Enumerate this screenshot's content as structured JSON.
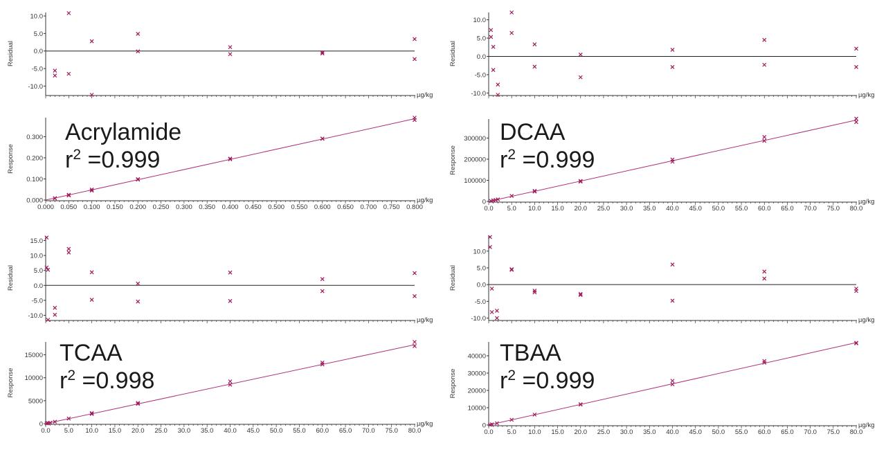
{
  "colors": {
    "marker": "#a0185a",
    "fit_line": "#b0307a",
    "axis": "#333333",
    "zero_line": "#222222",
    "background": "#ffffff"
  },
  "chart_data": [
    {
      "panel_id": "acrylamide-residual",
      "type": "scatter",
      "xlabel": "µg/kg",
      "ylabel": "Residual",
      "xlim": [
        0,
        0.8
      ],
      "ylim": [
        -12.5,
        11
      ],
      "yticks": [
        "10.0",
        "5.0",
        "0.0",
        "-5.0",
        "-10.0"
      ],
      "ytick_values": [
        10,
        5,
        0,
        -5,
        -10
      ],
      "zero_line": true,
      "points": [
        {
          "x": 0.02,
          "y": -5.6
        },
        {
          "x": 0.02,
          "y": -7.0
        },
        {
          "x": 0.05,
          "y": 10.8
        },
        {
          "x": 0.05,
          "y": -6.5
        },
        {
          "x": 0.1,
          "y": 2.8
        },
        {
          "x": 0.1,
          "y": -12.5
        },
        {
          "x": 0.2,
          "y": 4.9
        },
        {
          "x": 0.2,
          "y": -0.1
        },
        {
          "x": 0.4,
          "y": 1.1
        },
        {
          "x": 0.4,
          "y": -0.9
        },
        {
          "x": 0.6,
          "y": -0.4
        },
        {
          "x": 0.6,
          "y": -0.7
        },
        {
          "x": 0.8,
          "y": 3.4
        },
        {
          "x": 0.8,
          "y": -2.3
        }
      ]
    },
    {
      "panel_id": "acrylamide-response",
      "type": "scatter",
      "analyte": "Acrylamide",
      "r2_label": "r",
      "r2_sup": "2",
      "r2_value": " =0.999",
      "xlabel": "µg/kg",
      "ylabel": "Response",
      "xlim": [
        0,
        0.8
      ],
      "ylim": [
        0,
        0.39
      ],
      "xticks": [
        "0.000",
        "0.050",
        "0.100",
        "0.150",
        "0.200",
        "0.250",
        "0.300",
        "0.350",
        "0.400",
        "0.450",
        "0.500",
        "0.550",
        "0.600",
        "0.650",
        "0.700",
        "0.750",
        "0.800"
      ],
      "xtick_values": [
        0,
        0.05,
        0.1,
        0.15,
        0.2,
        0.25,
        0.3,
        0.35,
        0.4,
        0.45,
        0.5,
        0.55,
        0.6,
        0.65,
        0.7,
        0.75,
        0.8
      ],
      "yticks": [
        "0.300",
        "0.200",
        "0.100",
        "0.000"
      ],
      "ytick_values": [
        0.3,
        0.2,
        0.1,
        0
      ],
      "fit": {
        "x0": 0,
        "y0": 0.0,
        "x1": 0.8,
        "y1": 0.385
      },
      "points": [
        {
          "x": 0.02,
          "y": 0.008
        },
        {
          "x": 0.02,
          "y": 0.009
        },
        {
          "x": 0.05,
          "y": 0.022
        },
        {
          "x": 0.05,
          "y": 0.025
        },
        {
          "x": 0.1,
          "y": 0.045
        },
        {
          "x": 0.1,
          "y": 0.05
        },
        {
          "x": 0.2,
          "y": 0.097
        },
        {
          "x": 0.2,
          "y": 0.099
        },
        {
          "x": 0.4,
          "y": 0.193
        },
        {
          "x": 0.4,
          "y": 0.196
        },
        {
          "x": 0.6,
          "y": 0.29
        },
        {
          "x": 0.6,
          "y": 0.291
        },
        {
          "x": 0.8,
          "y": 0.39
        },
        {
          "x": 0.8,
          "y": 0.379
        }
      ]
    },
    {
      "panel_id": "dcaa-residual",
      "type": "scatter",
      "xlabel": "µg/kg",
      "ylabel": "Residual",
      "xlim": [
        0,
        80
      ],
      "ylim": [
        -10.5,
        12
      ],
      "yticks": [
        "10.0",
        "5.0",
        "0.0",
        "-5.0",
        "-10.0"
      ],
      "ytick_values": [
        10,
        5,
        0,
        -5,
        -10
      ],
      "zero_line": true,
      "points": [
        {
          "x": 0.5,
          "y": 7.2
        },
        {
          "x": 0.5,
          "y": 5.3
        },
        {
          "x": 1,
          "y": 2.6
        },
        {
          "x": 1,
          "y": -3.7
        },
        {
          "x": 2,
          "y": -7.7
        },
        {
          "x": 2,
          "y": -10.5
        },
        {
          "x": 5,
          "y": 12.0
        },
        {
          "x": 5,
          "y": 6.4
        },
        {
          "x": 10,
          "y": 3.3
        },
        {
          "x": 10,
          "y": -2.8
        },
        {
          "x": 20,
          "y": 0.5
        },
        {
          "x": 20,
          "y": -5.7
        },
        {
          "x": 40,
          "y": 1.8
        },
        {
          "x": 40,
          "y": -2.9
        },
        {
          "x": 60,
          "y": 4.5
        },
        {
          "x": 60,
          "y": -2.3
        },
        {
          "x": 80,
          "y": 2.1
        },
        {
          "x": 80,
          "y": -2.9
        }
      ]
    },
    {
      "panel_id": "dcaa-response",
      "type": "scatter",
      "analyte": "DCAA",
      "r2_label": "r",
      "r2_sup": "2",
      "r2_value": " =0.999",
      "xlabel": "µg/kg",
      "ylabel": "Response",
      "xlim": [
        0,
        80
      ],
      "ylim": [
        0,
        390000
      ],
      "xticks": [
        "0.0",
        "5.0",
        "10.0",
        "15.0",
        "20.0",
        "25.0",
        "30.0",
        "35.0",
        "40.0",
        "45.0",
        "50.0",
        "55.0",
        "60.0",
        "65.0",
        "70.0",
        "75.0",
        "80.0"
      ],
      "xtick_values": [
        0,
        5,
        10,
        15,
        20,
        25,
        30,
        35,
        40,
        45,
        50,
        55,
        60,
        65,
        70,
        75,
        80
      ],
      "yticks": [
        "300000",
        "200000",
        "100000",
        "0"
      ],
      "ytick_values": [
        300000,
        200000,
        100000,
        0
      ],
      "fit": {
        "x0": 0,
        "y0": 0,
        "x1": 80,
        "y1": 385000
      },
      "points": [
        {
          "x": 0.5,
          "y": 2500
        },
        {
          "x": 1,
          "y": 5000
        },
        {
          "x": 1.5,
          "y": 7000
        },
        {
          "x": 2,
          "y": 9500
        },
        {
          "x": 5,
          "y": 26000
        },
        {
          "x": 10,
          "y": 47000
        },
        {
          "x": 10,
          "y": 50000
        },
        {
          "x": 20,
          "y": 94000
        },
        {
          "x": 20,
          "y": 97000
        },
        {
          "x": 40,
          "y": 188000
        },
        {
          "x": 40,
          "y": 198000
        },
        {
          "x": 60,
          "y": 287000
        },
        {
          "x": 60,
          "y": 305000
        },
        {
          "x": 80,
          "y": 392000
        },
        {
          "x": 80,
          "y": 376000
        }
      ]
    },
    {
      "panel_id": "tcaa-residual",
      "type": "scatter",
      "xlabel": "µg/kg",
      "ylabel": "Residual",
      "xlim": [
        0,
        80
      ],
      "ylim": [
        -11.5,
        16.5
      ],
      "yticks": [
        "15.0",
        "10.0",
        "5.0",
        "0.0",
        "-5.0",
        "-10.0"
      ],
      "ytick_values": [
        15,
        10,
        5,
        0,
        -5,
        -10
      ],
      "zero_line": true,
      "points": [
        {
          "x": 0.2,
          "y": 16.0
        },
        {
          "x": 0.2,
          "y": 6.0
        },
        {
          "x": 0.5,
          "y": 5.2
        },
        {
          "x": 0.5,
          "y": -11.5
        },
        {
          "x": 2,
          "y": -7.5
        },
        {
          "x": 2,
          "y": -9.8
        },
        {
          "x": 5,
          "y": 12.2
        },
        {
          "x": 5,
          "y": 11.0
        },
        {
          "x": 10,
          "y": 4.4
        },
        {
          "x": 10,
          "y": -4.8
        },
        {
          "x": 20,
          "y": 0.6
        },
        {
          "x": 20,
          "y": -5.4
        },
        {
          "x": 40,
          "y": 4.3
        },
        {
          "x": 40,
          "y": -5.2
        },
        {
          "x": 60,
          "y": 2.1
        },
        {
          "x": 60,
          "y": -1.9
        },
        {
          "x": 80,
          "y": 4.1
        },
        {
          "x": 80,
          "y": -3.6
        }
      ]
    },
    {
      "panel_id": "tbaa-residual",
      "type": "scatter",
      "xlabel": "µg/kg",
      "ylabel": "Residual",
      "xlim": [
        0,
        80
      ],
      "ylim": [
        -10.5,
        14.5
      ],
      "yticks": [
        "10.0",
        "5.0",
        "0.0",
        "-5.0",
        "-10.0"
      ],
      "ytick_values": [
        10,
        5,
        0,
        -5,
        -10
      ],
      "zero_line": true,
      "points": [
        {
          "x": 0.3,
          "y": 14.2
        },
        {
          "x": 0.3,
          "y": 11.2
        },
        {
          "x": 0.7,
          "y": -1.2
        },
        {
          "x": 0.7,
          "y": -8.2
        },
        {
          "x": 1.8,
          "y": -7.8
        },
        {
          "x": 1.8,
          "y": -10.0
        },
        {
          "x": 5,
          "y": 4.6
        },
        {
          "x": 5,
          "y": 4.4
        },
        {
          "x": 10,
          "y": -1.8
        },
        {
          "x": 10,
          "y": -2.3
        },
        {
          "x": 20,
          "y": -2.8
        },
        {
          "x": 20,
          "y": -3.1
        },
        {
          "x": 40,
          "y": 6.0
        },
        {
          "x": 40,
          "y": -4.8
        },
        {
          "x": 60,
          "y": 3.9
        },
        {
          "x": 60,
          "y": 1.8
        },
        {
          "x": 80,
          "y": -1.2
        },
        {
          "x": 80,
          "y": -1.9
        }
      ]
    },
    {
      "panel_id": "tcaa-response",
      "type": "scatter",
      "analyte": "TCAA",
      "r2_label": "r",
      "r2_sup": "2",
      "r2_value": " =0.998",
      "xlabel": "µg/kg",
      "ylabel": "Response",
      "xlim": [
        0,
        80
      ],
      "ylim": [
        0,
        17800
      ],
      "xticks": [
        "0.0",
        "5.0",
        "10.0",
        "15.0",
        "20.0",
        "25.0",
        "30.0",
        "35.0",
        "40.0",
        "45.0",
        "50.0",
        "55.0",
        "60.0",
        "65.0",
        "70.0",
        "75.0",
        "80.0"
      ],
      "xtick_values": [
        0,
        5,
        10,
        15,
        20,
        25,
        30,
        35,
        40,
        45,
        50,
        55,
        60,
        65,
        70,
        75,
        80
      ],
      "yticks": [
        "15000",
        "10000",
        "5000",
        "0"
      ],
      "ytick_values": [
        15000,
        10000,
        5000,
        0
      ],
      "fit": {
        "x0": 0,
        "y0": 0,
        "x1": 80,
        "y1": 17200
      },
      "points": [
        {
          "x": 0.2,
          "y": 50
        },
        {
          "x": 0.5,
          "y": 100
        },
        {
          "x": 1,
          "y": 200
        },
        {
          "x": 2,
          "y": 400
        },
        {
          "x": 5,
          "y": 1100
        },
        {
          "x": 10,
          "y": 2100
        },
        {
          "x": 10,
          "y": 2300
        },
        {
          "x": 20,
          "y": 4300
        },
        {
          "x": 20,
          "y": 4500
        },
        {
          "x": 40,
          "y": 8500
        },
        {
          "x": 40,
          "y": 9200
        },
        {
          "x": 60,
          "y": 12900
        },
        {
          "x": 60,
          "y": 13300
        },
        {
          "x": 80,
          "y": 17800
        },
        {
          "x": 80,
          "y": 16900
        }
      ]
    },
    {
      "panel_id": "tbaa-response",
      "type": "scatter",
      "analyte": "TBAA",
      "r2_label": "r",
      "r2_sup": "2",
      "r2_value": " =0.999",
      "xlabel": "µg/kg",
      "ylabel": "Response",
      "xlim": [
        0,
        80
      ],
      "ylim": [
        0,
        48000
      ],
      "xticks": [
        "0.0",
        "5.0",
        "10.0",
        "15.0",
        "20.0",
        "25.0",
        "30.0",
        "35.0",
        "40.0",
        "45.0",
        "50.0",
        "55.0",
        "60.0",
        "65.0",
        "70.0",
        "75.0",
        "80.0"
      ],
      "xtick_values": [
        0,
        5,
        10,
        15,
        20,
        25,
        30,
        35,
        40,
        45,
        50,
        55,
        60,
        65,
        70,
        75,
        80
      ],
      "yticks": [
        "40000",
        "30000",
        "20000",
        "10000",
        "0"
      ],
      "ytick_values": [
        40000,
        30000,
        20000,
        10000,
        0
      ],
      "fit": {
        "x0": 0,
        "y0": 0,
        "x1": 80,
        "y1": 47600
      },
      "points": [
        {
          "x": 0.3,
          "y": 150
        },
        {
          "x": 0.7,
          "y": 400
        },
        {
          "x": 1.8,
          "y": 1000
        },
        {
          "x": 5,
          "y": 3000
        },
        {
          "x": 10,
          "y": 6000
        },
        {
          "x": 20,
          "y": 11800
        },
        {
          "x": 20,
          "y": 12000
        },
        {
          "x": 40,
          "y": 23500
        },
        {
          "x": 40,
          "y": 25500
        },
        {
          "x": 60,
          "y": 36000
        },
        {
          "x": 60,
          "y": 37000
        },
        {
          "x": 80,
          "y": 47500
        },
        {
          "x": 80,
          "y": 47200
        }
      ]
    }
  ]
}
